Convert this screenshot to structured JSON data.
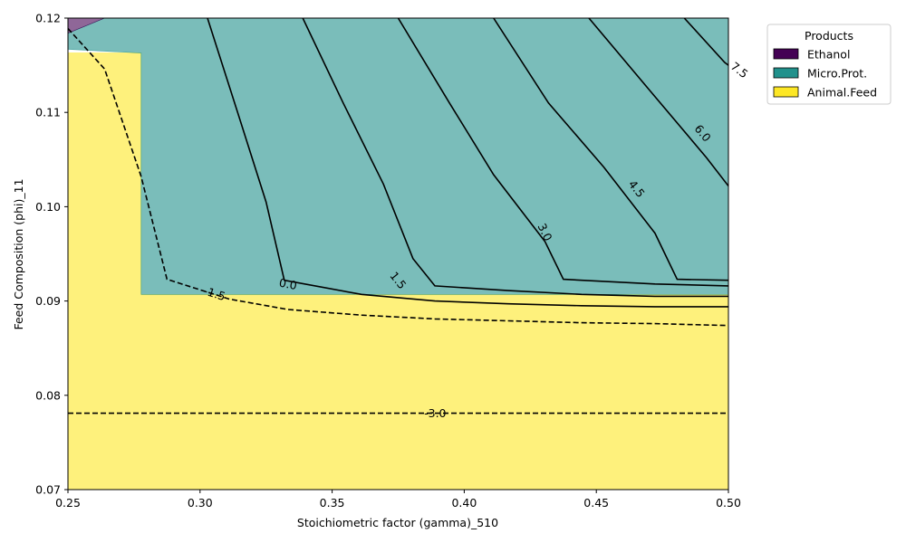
{
  "chart_data": {
    "type": "contour",
    "xlabel": "Stoichiometric factor (gamma)_510",
    "ylabel": "Feed Composition (phi)_11",
    "xlim": [
      0.25,
      0.5
    ],
    "ylim": [
      0.07,
      0.12
    ],
    "xticks": [
      "0.25",
      "0.30",
      "0.35",
      "0.40",
      "0.45",
      "0.50"
    ],
    "yticks": [
      "0.07",
      "0.08",
      "0.09",
      "0.10",
      "0.11",
      "0.12"
    ],
    "legend": {
      "title": "Products",
      "location": "upper right, outside plot",
      "entries": [
        {
          "name": "Ethanol",
          "color": "#440154"
        },
        {
          "name": "Micro.Prot.",
          "color": "#21918c"
        },
        {
          "name": "Animal.Feed",
          "color": "#fde725"
        }
      ]
    },
    "regions": [
      {
        "product": "Animal.Feed",
        "color": "#fde725",
        "opacity": 0.6,
        "polygon": [
          [
            0.25,
            0.07
          ],
          [
            0.5,
            0.07
          ],
          [
            0.5,
            0.0907
          ],
          [
            0.2777,
            0.0907
          ],
          [
            0.2777,
            0.1163
          ],
          [
            0.25,
            0.1163
          ]
        ]
      },
      {
        "product": "Micro.Prot.",
        "color": "#21918c",
        "opacity": 0.6,
        "polygon": [
          [
            0.2777,
            0.0907
          ],
          [
            0.5,
            0.0907
          ],
          [
            0.5,
            0.12
          ],
          [
            0.2639,
            0.12
          ],
          [
            0.25,
            0.1184
          ],
          [
            0.25,
            0.1167
          ],
          [
            0.2777,
            0.1163
          ]
        ]
      },
      {
        "product": "Ethanol",
        "color": "#440154",
        "opacity": 0.6,
        "polygon": [
          [
            0.25,
            0.1184
          ],
          [
            0.25,
            0.12
          ],
          [
            0.2639,
            0.12
          ]
        ]
      }
    ],
    "contours": [
      {
        "level": -3.0,
        "label": "-3.0",
        "style": "dashed",
        "points": [
          [
            0.25,
            0.0781
          ],
          [
            0.5,
            0.0781
          ]
        ],
        "label_at": [
          0.389,
          0.0781
        ]
      },
      {
        "level": -1.5,
        "label": "-1.5",
        "style": "dashed",
        "points": [
          [
            0.25,
            0.1189
          ],
          [
            0.2639,
            0.1146
          ],
          [
            0.2777,
            0.1032
          ],
          [
            0.2875,
            0.0923
          ],
          [
            0.3111,
            0.0902
          ],
          [
            0.3333,
            0.0891
          ],
          [
            0.3611,
            0.0885
          ],
          [
            0.3889,
            0.0881
          ],
          [
            0.4167,
            0.0879
          ],
          [
            0.4444,
            0.0877
          ],
          [
            0.4722,
            0.0876
          ],
          [
            0.5,
            0.0874
          ]
        ],
        "label_at": [
          0.3055,
          0.0908
        ]
      },
      {
        "level": 0.0,
        "label": "0.0",
        "style": "solid",
        "points": [
          [
            0.3028,
            0.12
          ],
          [
            0.3139,
            0.1103
          ],
          [
            0.325,
            0.1005
          ],
          [
            0.3319,
            0.0922
          ],
          [
            0.3611,
            0.0907
          ],
          [
            0.3889,
            0.09
          ],
          [
            0.4167,
            0.0897
          ],
          [
            0.4444,
            0.0895
          ],
          [
            0.4722,
            0.0894
          ],
          [
            0.5,
            0.0894
          ]
        ],
        "label_at": [
          0.3333,
          0.0918
        ]
      },
      {
        "level": 1.5,
        "label": "1.5",
        "style": "solid",
        "points": [
          [
            0.3389,
            0.12
          ],
          [
            0.3542,
            0.111
          ],
          [
            0.3694,
            0.1024
          ],
          [
            0.3806,
            0.0945
          ],
          [
            0.3889,
            0.0916
          ],
          [
            0.4167,
            0.0911
          ],
          [
            0.4444,
            0.0907
          ],
          [
            0.4722,
            0.0905
          ],
          [
            0.5,
            0.0905
          ]
        ],
        "label_at": [
          0.375,
          0.0922
        ]
      },
      {
        "level": 3.0,
        "label": "3.0",
        "style": "solid",
        "points": [
          [
            0.375,
            0.12
          ],
          [
            0.3944,
            0.111
          ],
          [
            0.4111,
            0.1034
          ],
          [
            0.4306,
            0.0963
          ],
          [
            0.4375,
            0.0923
          ],
          [
            0.4722,
            0.0918
          ],
          [
            0.5,
            0.0916
          ]
        ],
        "label_at": [
          0.4306,
          0.0973
        ]
      },
      {
        "level": 4.5,
        "label": "4.5",
        "style": "solid",
        "points": [
          [
            0.4111,
            0.12
          ],
          [
            0.4319,
            0.111
          ],
          [
            0.4528,
            0.1042
          ],
          [
            0.4722,
            0.0972
          ],
          [
            0.4806,
            0.0923
          ],
          [
            0.5,
            0.0922
          ]
        ],
        "label_at": [
          0.4653,
          0.1019
        ]
      },
      {
        "level": 6.0,
        "label": "6.0",
        "style": "solid",
        "points": [
          [
            0.4472,
            0.12
          ],
          [
            0.4694,
            0.1126
          ],
          [
            0.4917,
            0.1052
          ],
          [
            0.5,
            0.1022
          ]
        ],
        "label_at": [
          0.4903,
          0.1078
        ]
      },
      {
        "level": 7.5,
        "label": "7.5",
        "style": "solid",
        "points": [
          [
            0.4833,
            0.12
          ],
          [
            0.4986,
            0.1153
          ],
          [
            0.5,
            0.115
          ]
        ],
        "label_at": [
          0.5042,
          0.1145
        ]
      }
    ]
  }
}
